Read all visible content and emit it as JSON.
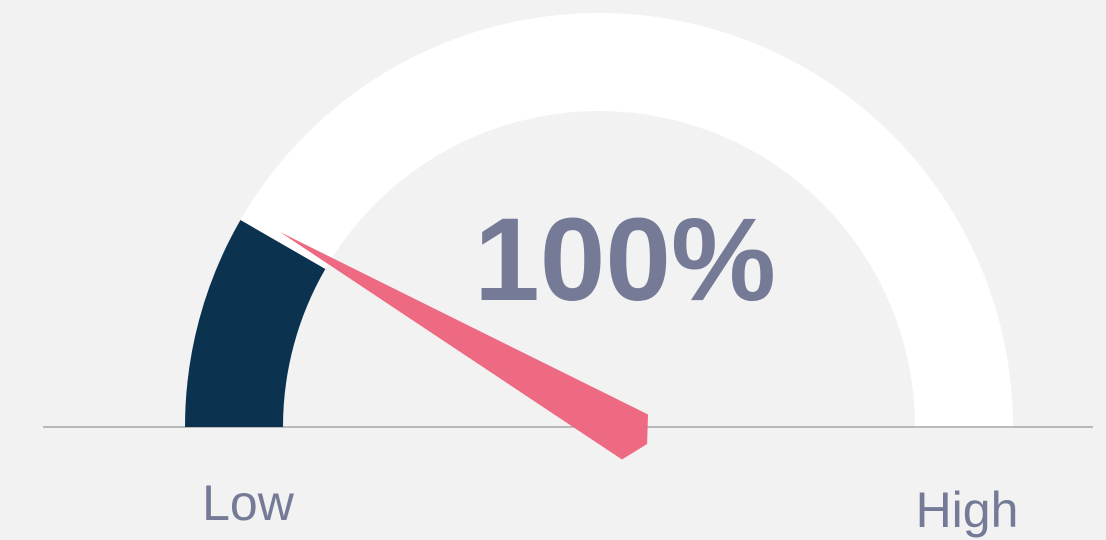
{
  "chart_data": {
    "type": "gauge",
    "values": [
      100
    ],
    "value_labels": [
      "100%"
    ],
    "ylim": [
      0,
      600
    ],
    "range_labels": [
      "Low",
      "High"
    ],
    "fill_color": "#0b3350",
    "track_color": "#ffffff",
    "needle_color": "#ee6a82"
  }
}
